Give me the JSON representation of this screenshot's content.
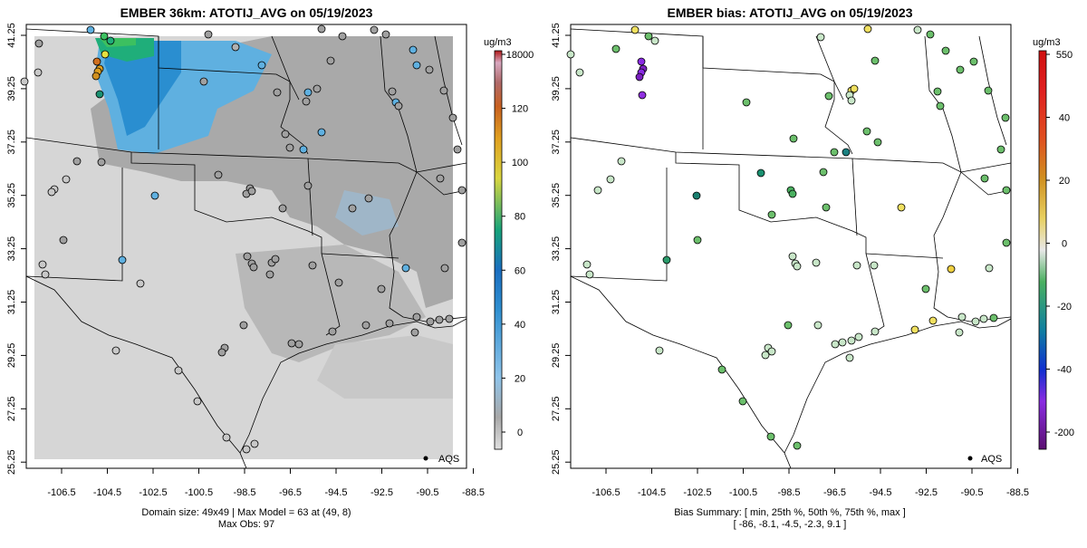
{
  "left_panel": {
    "title": "EMBER 36km: ATOTIJ_AVG on 05/19/2023",
    "units": "ug/m3",
    "legend_label": "AQS",
    "caption_line1": "Domain size: 49x49 | Max Model = 63 at (49, 8)",
    "caption_line2": "Max Obs: 97",
    "colorbar_ticks": [
      "18000",
      "120",
      "100",
      "80",
      "60",
      "40",
      "20",
      "0"
    ]
  },
  "right_panel": {
    "title": "EMBER bias: ATOTIJ_AVG on 05/19/2023",
    "units": "ug/m3",
    "legend_label": "AQS",
    "caption_line1": "Bias Summary: [ min, 25th %, 50th %, 75th %, max ]",
    "caption_line2": "[ -86,  -8.1,  -4.5,  -2.3,   9.1 ]",
    "colorbar_ticks": [
      "550",
      "40",
      "20",
      "0",
      "-20",
      "-40",
      "-200"
    ]
  },
  "axes": {
    "x_ticks": [
      "-106.5",
      "-104.5",
      "-102.5",
      "-100.5",
      "-98.5",
      "-96.5",
      "-94.5",
      "-92.5",
      "-90.5",
      "-88.5"
    ],
    "y_ticks": [
      "41.25",
      "39.25",
      "37.25",
      "35.25",
      "33.25",
      "31.25",
      "29.25",
      "27.25",
      "25.25"
    ]
  },
  "colors": {
    "model_low": "#d9d9d9",
    "model_mid": "#a6a6a6",
    "model_blue": "#5fb0e0",
    "model_green": "#2bb07a",
    "bias_neutral": "#c8e6c8",
    "bias_green": "#6cbf6c",
    "bias_purple": "#8a2be2",
    "bias_yellow": "#f0e060"
  }
}
